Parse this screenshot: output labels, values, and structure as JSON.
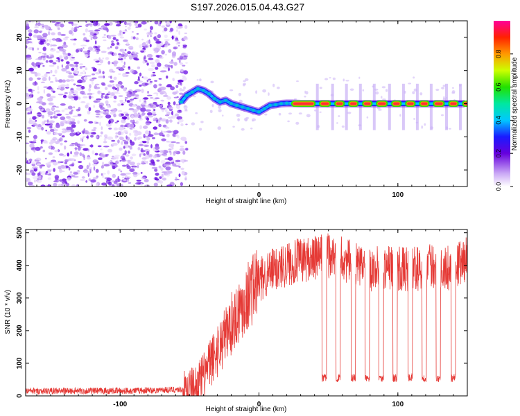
{
  "title": "S197.2026.015.04.43.G27",
  "colors": {
    "snr_line": "#e53935",
    "axis": "#000000",
    "speckle": "#8a2be2"
  },
  "chart_data": [
    {
      "type": "heatmap",
      "title": "S197.2026.015.04.43.G27",
      "xlabel": "Height of straight line (km)",
      "ylabel": "Frequency (Hz)",
      "xlim": [
        -168,
        150
      ],
      "ylim": [
        -25,
        25
      ],
      "x_ticks": [
        -100,
        0,
        100
      ],
      "y_ticks": [
        20,
        10,
        0,
        -10,
        -20
      ],
      "colorbar": {
        "label": "Normalized spectral amplitude",
        "range": [
          0,
          1
        ],
        "ticks": [
          0.0,
          0.2,
          0.4,
          0.6,
          0.8
        ],
        "tick_labels": [
          "0.0",
          "0.2",
          "0.4",
          "0.6",
          "0.8"
        ],
        "colormap": "rainbow (white-violet-blue-cyan-green-yellow-red-magenta)"
      },
      "features": {
        "noise_region_x": [
          -168,
          -55
        ],
        "signal_trace": {
          "x": [
            -56,
            -52,
            -48,
            -44,
            -40,
            -36,
            -32,
            -28,
            -24,
            -20,
            -16,
            -12,
            -8,
            -4,
            0,
            4,
            8,
            12,
            16,
            20,
            24,
            30,
            40,
            50,
            60,
            70,
            80,
            90,
            100,
            110,
            120,
            130,
            140,
            148
          ],
          "y": [
            0.5,
            2.5,
            3.5,
            4.5,
            4.0,
            3.0,
            1.5,
            0.5,
            1.0,
            0.0,
            -0.5,
            -1.0,
            -1.5,
            -2.0,
            -2.5,
            -1.5,
            -0.5,
            -0.3,
            0.0,
            0.1,
            0.1,
            0.0,
            0.0,
            0.0,
            0.0,
            0.0,
            0.0,
            0.0,
            0.0,
            0.0,
            0.0,
            0.0,
            0.0,
            0.0
          ]
        },
        "periodic_dropouts_x": [
          42,
          53,
          63,
          73,
          83,
          94,
          104,
          114,
          124,
          135,
          145
        ]
      }
    },
    {
      "type": "line",
      "xlabel": "Height of straight line (km)",
      "ylabel": "SNR (10 * v/v)",
      "xlim": [
        -168,
        150
      ],
      "ylim": [
        0,
        510
      ],
      "x_ticks": [
        -100,
        0,
        100
      ],
      "y_ticks": [
        0,
        100,
        200,
        300,
        400,
        500
      ],
      "series": [
        {
          "name": "SNR",
          "x": [
            -168,
            -150,
            -130,
            -110,
            -90,
            -70,
            -55,
            -50,
            -45,
            -40,
            -35,
            -30,
            -25,
            -20,
            -15,
            -10,
            -5,
            0,
            5,
            10,
            15,
            20,
            25,
            30,
            35,
            40,
            45,
            50,
            55,
            60,
            65,
            70,
            75,
            80,
            85,
            90,
            95,
            100,
            105,
            110,
            115,
            120,
            125,
            130,
            135,
            140,
            145,
            150
          ],
          "values": [
            15,
            15,
            15,
            15,
            16,
            18,
            20,
            25,
            30,
            60,
            100,
            140,
            180,
            220,
            260,
            290,
            330,
            350,
            370,
            385,
            395,
            405,
            410,
            415,
            420,
            420,
            425,
            430,
            425,
            420,
            410,
            400,
            395,
            390,
            390,
            395,
            395,
            390,
            385,
            390,
            390,
            395,
            400,
            395,
            390,
            395,
            410,
            420
          ]
        }
      ],
      "dropouts": {
        "x": [
          47,
          57,
          68,
          78,
          88,
          98,
          109,
          119,
          129,
          140
        ],
        "floor_value": 55
      }
    }
  ]
}
